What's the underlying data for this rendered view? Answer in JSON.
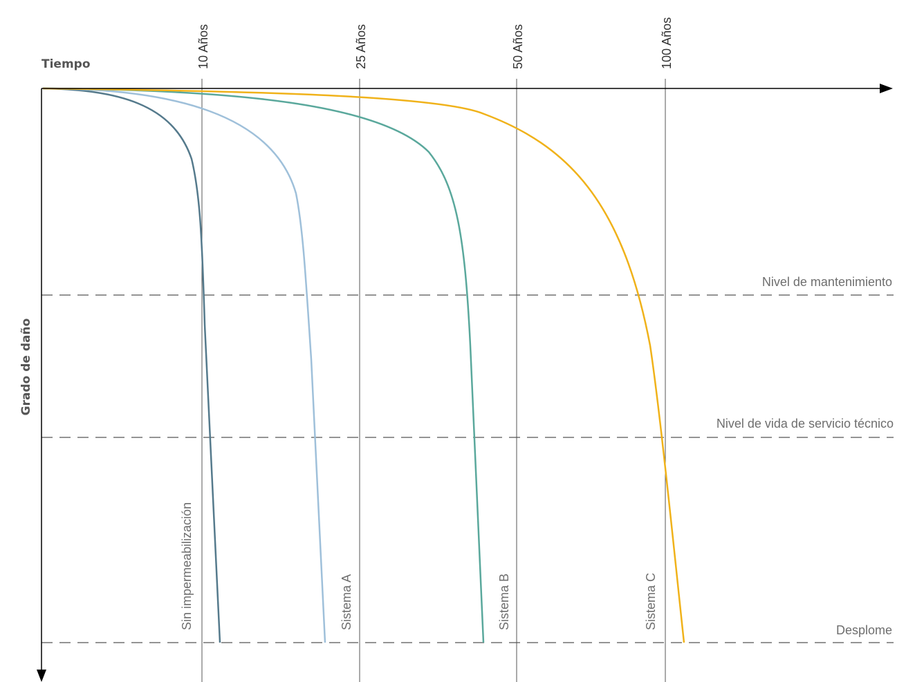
{
  "chart_data": {
    "type": "line",
    "x_axis_title": "Tiempo",
    "y_axis_title": "Grado de daño",
    "x_ticks": [
      "10 Años",
      "25 Años",
      "50 Años",
      "100 Años"
    ],
    "levels": [
      "Nivel de mantenimiento",
      "Nivel de vida de servicio técnico",
      "Desplome"
    ],
    "series": [
      {
        "name": "Sin impermeabilización",
        "color": "#557a8c"
      },
      {
        "name": "Sistema A",
        "color": "#9fc0da"
      },
      {
        "name": "Sistema B",
        "color": "#5aa89c"
      },
      {
        "name": "Sistema C",
        "color": "#f0b21a"
      }
    ],
    "grid": true
  }
}
